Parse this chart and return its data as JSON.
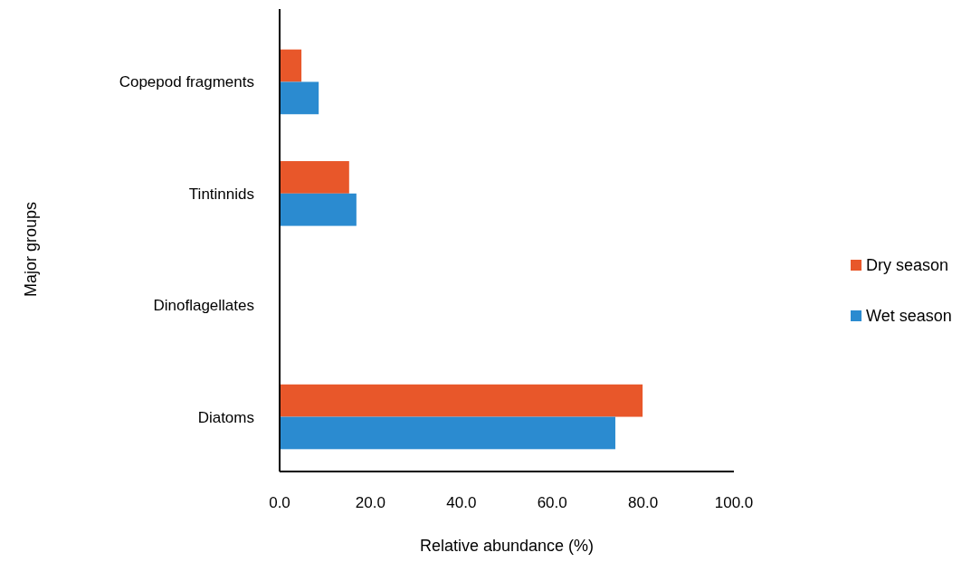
{
  "chart_data": {
    "type": "bar",
    "orientation": "horizontal",
    "xlabel": "Relative abundance (%)",
    "ylabel": "Major groups",
    "categories": [
      "Copepod fragments",
      "Tintinnids",
      "Dinoflagellates",
      "Diatoms"
    ],
    "series": [
      {
        "name": "Dry season",
        "color": "#e8572a",
        "values": [
          4.8,
          15.3,
          0,
          79.9
        ]
      },
      {
        "name": "Wet season",
        "color": "#2b8bd0",
        "values": [
          8.6,
          16.9,
          0,
          73.9
        ]
      }
    ],
    "xlim": [
      0,
      100
    ],
    "xticks": [
      {
        "value": 0,
        "label": "0.0"
      },
      {
        "value": 20,
        "label": "20.0"
      },
      {
        "value": 40,
        "label": "40.0"
      },
      {
        "value": 60,
        "label": "60.0"
      },
      {
        "value": 80,
        "label": "80.0"
      },
      {
        "value": 100,
        "label": "100.0"
      }
    ],
    "grid": false,
    "legend": "right"
  }
}
